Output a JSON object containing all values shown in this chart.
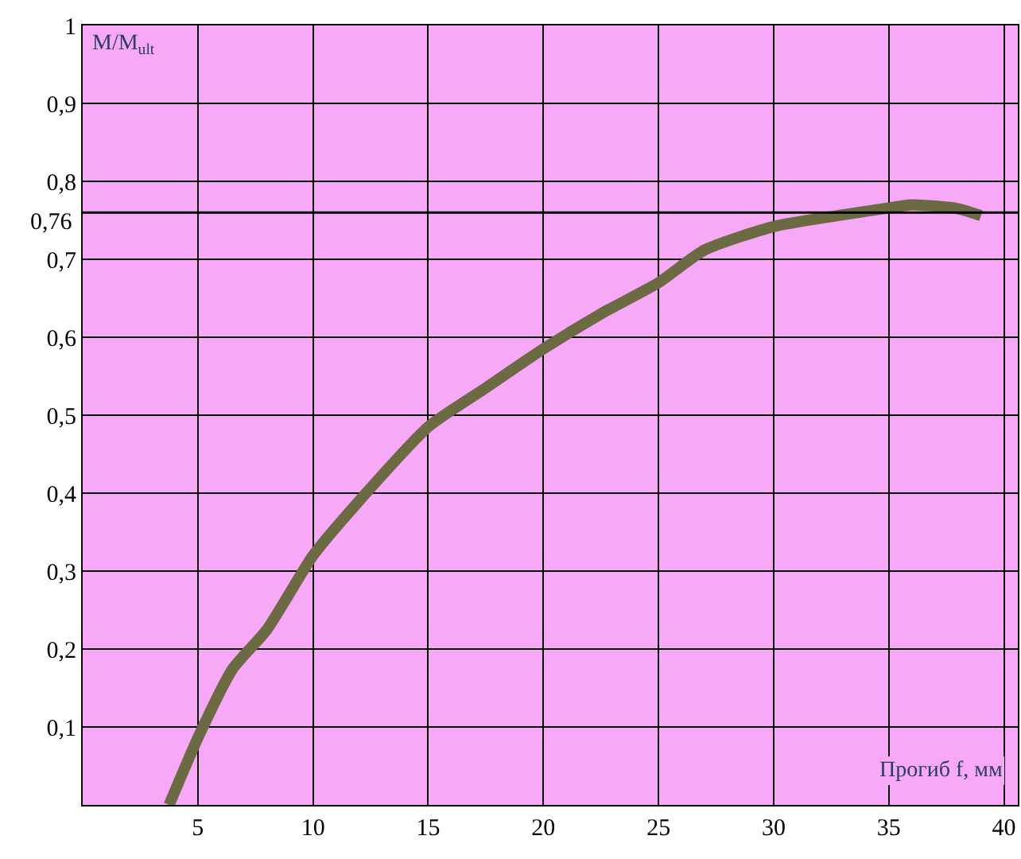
{
  "chart_data": {
    "type": "line",
    "xlabel": "Прогиб f, мм",
    "ylabel": "M/M$_{ult}$",
    "x": [
      3.75,
      5,
      6.5,
      8,
      10,
      12,
      15,
      17.5,
      20,
      22.5,
      25,
      27,
      30,
      33,
      35,
      36,
      38,
      39
    ],
    "series": [
      {
        "color": "#6b6a42",
        "values": [
          0,
          0.086,
          0.174,
          0.225,
          0.32,
          0.39,
          0.485,
          0.535,
          0.585,
          0.63,
          0.67,
          0.712,
          0.742,
          0.757,
          0.766,
          0.77,
          0.765,
          0.756
        ]
      }
    ],
    "xlim": [
      0,
      40.6
    ],
    "xticks": [
      5,
      10,
      15,
      20,
      25,
      30,
      35,
      40
    ],
    "ylim": [
      0,
      1
    ],
    "yticks": [
      {
        "value": 0.1,
        "label": "0,1"
      },
      {
        "value": 0.2,
        "label": "0,2"
      },
      {
        "value": 0.3,
        "label": "0,3"
      },
      {
        "value": 0.4,
        "label": "0,4"
      },
      {
        "value": 0.5,
        "label": "0,5"
      },
      {
        "value": 0.6,
        "label": "0,6"
      },
      {
        "value": 0.7,
        "label": "0,7"
      },
      {
        "value": 0.8,
        "label": "0,8"
      },
      {
        "value": 0.9,
        "label": "0,9"
      },
      1
    ],
    "ref_lines": [
      {
        "axis": "y",
        "value": 0.76,
        "label": "0,76",
        "color": "#000000"
      }
    ],
    "grid": true,
    "marker": "none",
    "line_style": "solid"
  }
}
